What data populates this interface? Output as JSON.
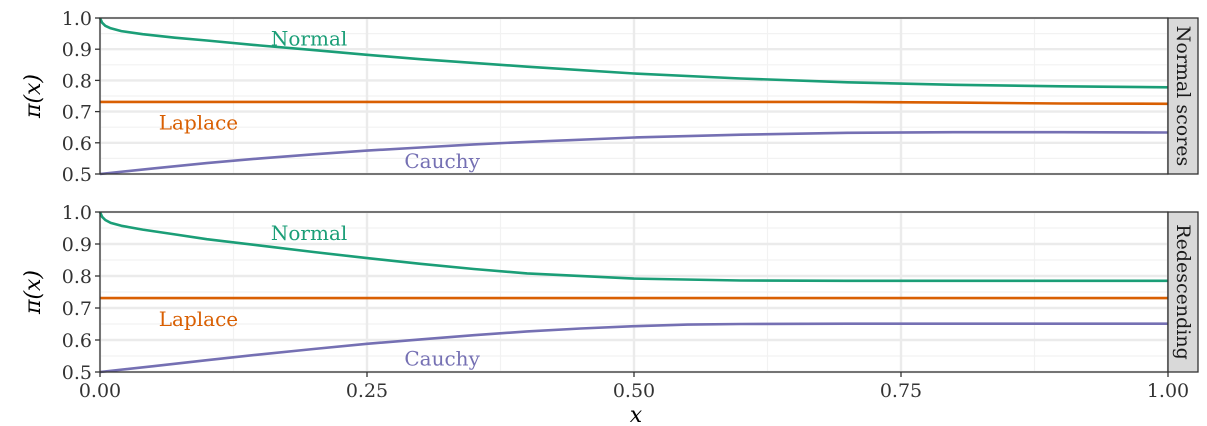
{
  "chart_data": {
    "type": "line",
    "xlabel": "x",
    "ylabel": "π(x)",
    "xlim": [
      0,
      1
    ],
    "ylim": [
      0.5,
      1.0
    ],
    "x_ticks": [
      "0.00",
      "0.25",
      "0.50",
      "0.75",
      "1.00"
    ],
    "y_ticks": [
      "0.5",
      "0.6",
      "0.7",
      "0.8",
      "0.9",
      "1.0"
    ],
    "grid": true,
    "colors": {
      "Normal": "#1b9e77",
      "Laplace": "#d95f02",
      "Cauchy": "#7570b3"
    },
    "panels": [
      {
        "strip": "Normal scores",
        "series": [
          {
            "name": "Normal",
            "label_at": [
              0.16,
              0.935
            ],
            "x": [
              0,
              0.002,
              0.005,
              0.01,
              0.02,
              0.04,
              0.07,
              0.1,
              0.15,
              0.2,
              0.25,
              0.3,
              0.4,
              0.5,
              0.6,
              0.7,
              0.8,
              0.9,
              1.0
            ],
            "y": [
              1.0,
              0.985,
              0.975,
              0.967,
              0.958,
              0.948,
              0.937,
              0.928,
              0.912,
              0.897,
              0.882,
              0.868,
              0.844,
              0.822,
              0.806,
              0.794,
              0.786,
              0.781,
              0.778
            ]
          },
          {
            "name": "Laplace",
            "label_at": [
              0.055,
              0.665
            ],
            "x": [
              0,
              0.1,
              0.2,
              0.3,
              0.4,
              0.5,
              0.6,
              0.7,
              0.8,
              0.9,
              1.0
            ],
            "y": [
              0.731,
              0.731,
              0.731,
              0.731,
              0.731,
              0.731,
              0.731,
              0.731,
              0.729,
              0.726,
              0.725
            ]
          },
          {
            "name": "Cauchy",
            "label_at": [
              0.285,
              0.542
            ],
            "x": [
              0,
              0.05,
              0.1,
              0.15,
              0.2,
              0.25,
              0.3,
              0.35,
              0.4,
              0.5,
              0.6,
              0.7,
              0.8,
              0.9,
              1.0
            ],
            "y": [
              0.5,
              0.518,
              0.535,
              0.55,
              0.563,
              0.575,
              0.585,
              0.595,
              0.603,
              0.617,
              0.626,
              0.632,
              0.634,
              0.634,
              0.633
            ]
          }
        ]
      },
      {
        "strip": "Redescending",
        "series": [
          {
            "name": "Normal",
            "label_at": [
              0.16,
              0.935
            ],
            "x": [
              0,
              0.002,
              0.005,
              0.01,
              0.02,
              0.04,
              0.07,
              0.1,
              0.15,
              0.2,
              0.25,
              0.3,
              0.35,
              0.4,
              0.5,
              0.6,
              0.7,
              0.8,
              0.9,
              1.0
            ],
            "y": [
              1.0,
              0.985,
              0.975,
              0.966,
              0.957,
              0.945,
              0.93,
              0.915,
              0.895,
              0.875,
              0.856,
              0.838,
              0.822,
              0.808,
              0.792,
              0.786,
              0.785,
              0.785,
              0.785,
              0.785
            ]
          },
          {
            "name": "Laplace",
            "label_at": [
              0.055,
              0.665
            ],
            "x": [
              0,
              0.5,
              1.0
            ],
            "y": [
              0.731,
              0.731,
              0.731
            ]
          },
          {
            "name": "Cauchy",
            "label_at": [
              0.285,
              0.542
            ],
            "x": [
              0,
              0.05,
              0.1,
              0.15,
              0.2,
              0.25,
              0.3,
              0.35,
              0.4,
              0.45,
              0.5,
              0.55,
              0.6,
              0.7,
              0.8,
              0.9,
              1.0
            ],
            "y": [
              0.5,
              0.518,
              0.537,
              0.555,
              0.572,
              0.588,
              0.602,
              0.615,
              0.627,
              0.636,
              0.643,
              0.648,
              0.65,
              0.651,
              0.651,
              0.651,
              0.651
            ]
          }
        ]
      }
    ]
  }
}
